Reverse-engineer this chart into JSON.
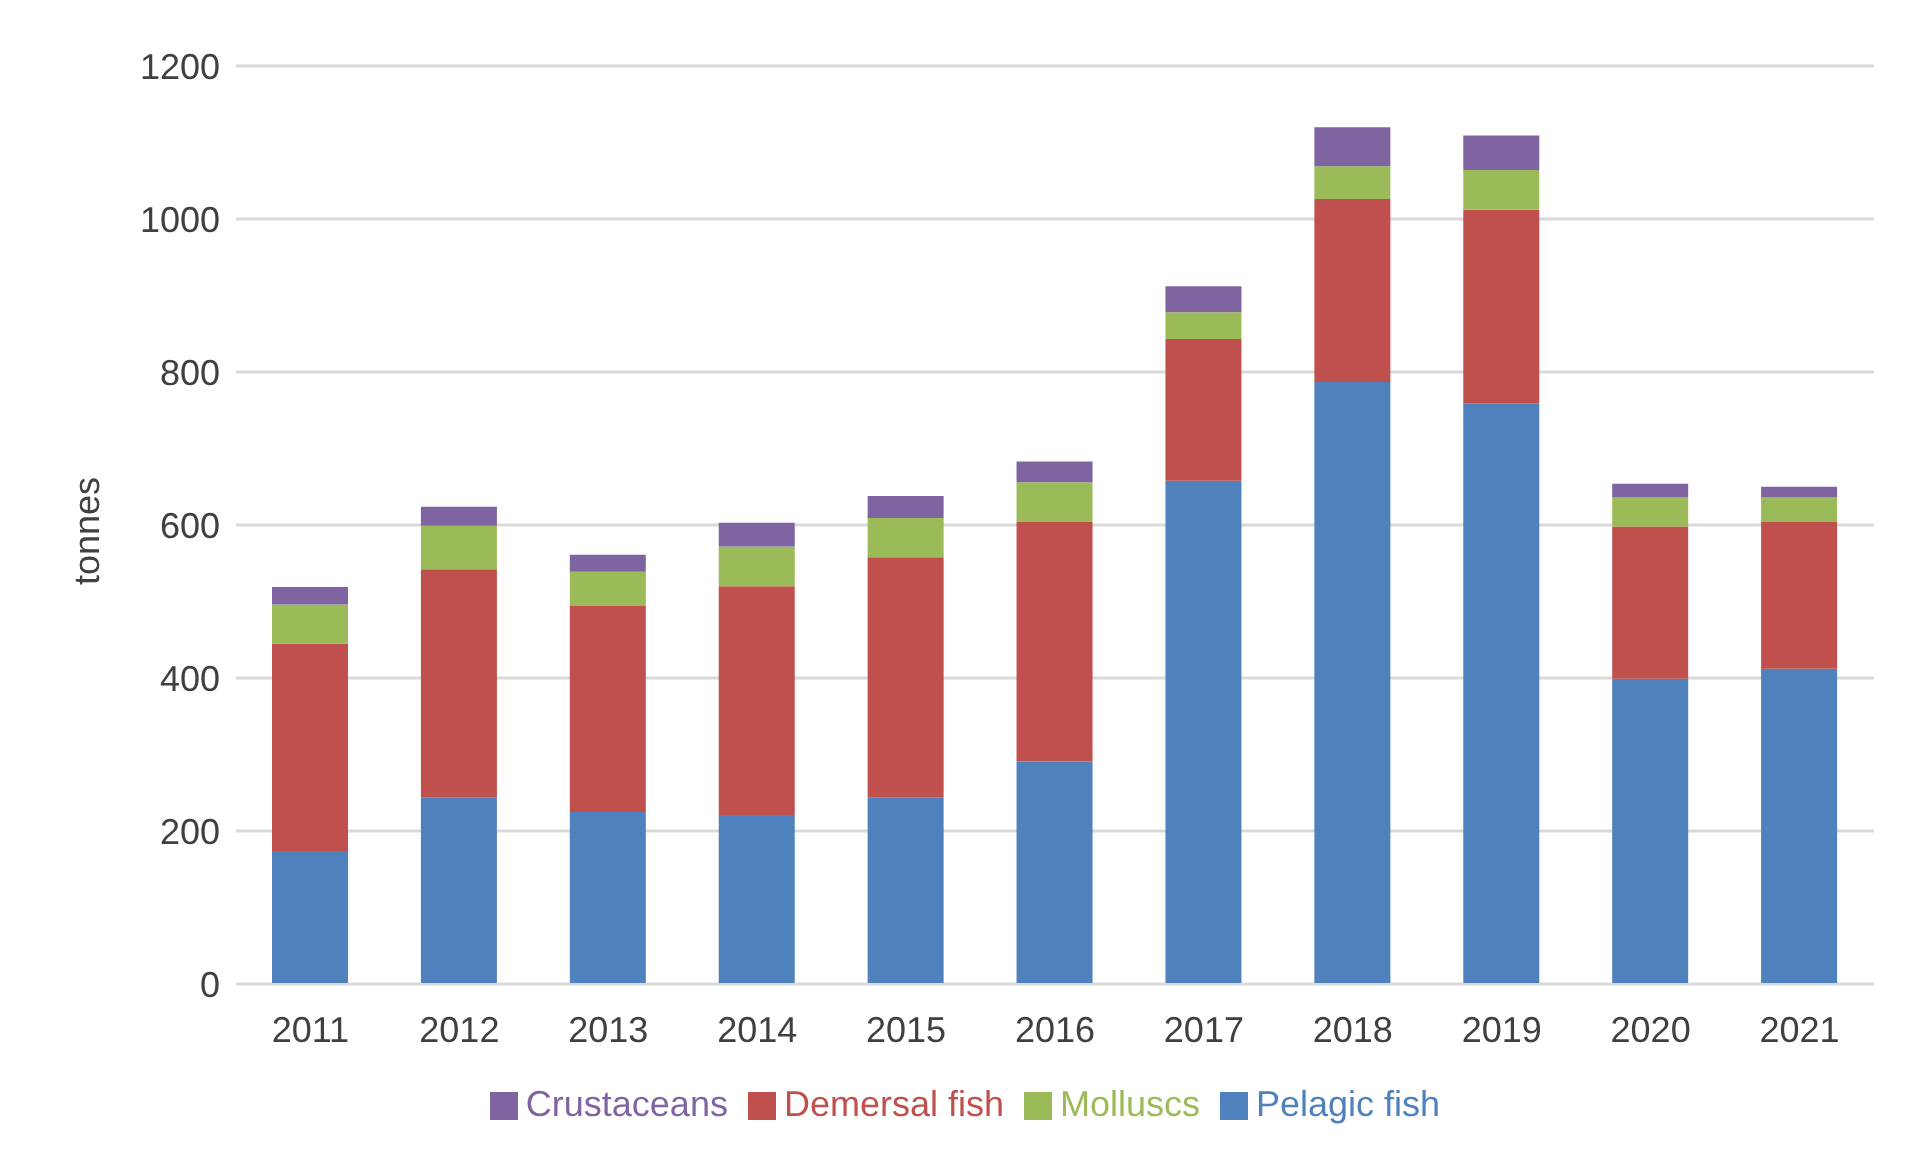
{
  "chart_data": {
    "type": "bar",
    "stacked": true,
    "ylabel": "tonnes",
    "categories": [
      "2011",
      "2012",
      "2013",
      "2014",
      "2015",
      "2016",
      "2017",
      "2018",
      "2019",
      "2020",
      "2021"
    ],
    "series": [
      {
        "name": "Pelagic fish",
        "color": "#4f81bd",
        "values": [
          174,
          244,
          225,
          221,
          244,
          291,
          658,
          787,
          759,
          399,
          412
        ]
      },
      {
        "name": "Demersal fish",
        "color": "#c0504d",
        "values": [
          271,
          298,
          269,
          299,
          314,
          313,
          185,
          239,
          253,
          199,
          192
        ]
      },
      {
        "name": "Molluscs",
        "color": "#9bbb59",
        "values": [
          51,
          57,
          45,
          52,
          51,
          52,
          35,
          43,
          52,
          38,
          32
        ]
      },
      {
        "name": "Crustaceans",
        "color": "#8064a2",
        "values": [
          23,
          25,
          22,
          31,
          29,
          27,
          34,
          51,
          45,
          18,
          14
        ]
      }
    ],
    "ylim": [
      0,
      1200
    ],
    "yticks": [
      0,
      200,
      400,
      600,
      800,
      1000,
      1200
    ],
    "grid": "y",
    "legend": "bottom"
  }
}
